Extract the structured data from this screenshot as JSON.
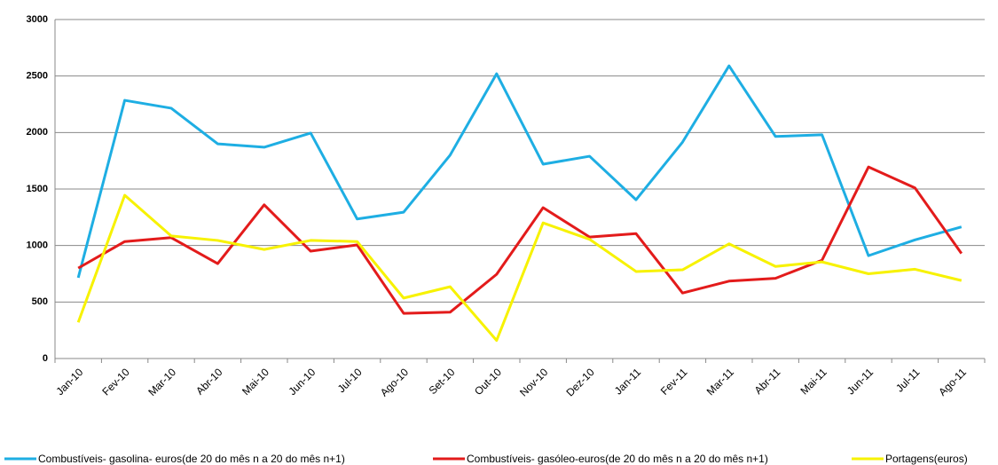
{
  "chart_data": {
    "type": "line",
    "categories": [
      "Jan-10",
      "Fev-10",
      "Mar-10",
      "Abr-10",
      "Mai-10",
      "Jun-10",
      "Jul-10",
      "Ago-10",
      "Set-10",
      "Out-10",
      "Nov-10",
      "Dez-10",
      "Jan-11",
      "Fev-11",
      "Mar-11",
      "Abr-11",
      "Mai-11",
      "Jun-11",
      "Jul-11",
      "Ago-11"
    ],
    "series": [
      {
        "name": "Combustíveis- gasolina- euros(de 20 do mês n a 20 do mês n+1)",
        "color": "#1eaee3",
        "values": [
          715,
          2285,
          2215,
          1900,
          1870,
          1995,
          1235,
          1295,
          1800,
          2520,
          1720,
          1790,
          1405,
          1915,
          2590,
          1965,
          1980,
          910,
          1050,
          1165
        ]
      },
      {
        "name": "Combustíveis- gasóleo-euros(de 20 do mês n a 20 do mês n+1)",
        "color": "#e31b1b",
        "values": [
          800,
          1035,
          1070,
          840,
          1360,
          950,
          1005,
          400,
          410,
          745,
          1335,
          1075,
          1105,
          580,
          685,
          710,
          870,
          1695,
          1510,
          930
        ]
      },
      {
        "name": "Portagens(euros)",
        "color": "#f7f200",
        "values": [
          320,
          1445,
          1085,
          1045,
          965,
          1045,
          1035,
          535,
          635,
          160,
          1200,
          1055,
          770,
          785,
          1015,
          815,
          855,
          750,
          790,
          690
        ]
      }
    ],
    "ylim": [
      0,
      3000
    ],
    "yticks": [
      0,
      500,
      1000,
      1500,
      2000,
      2500,
      3000
    ],
    "grid": true,
    "legend": "bottom"
  }
}
